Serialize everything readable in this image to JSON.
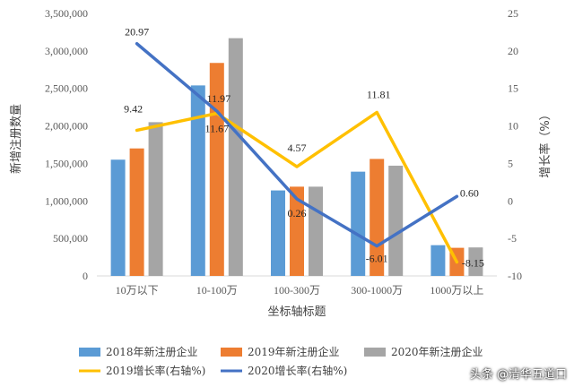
{
  "colors": {
    "bar2018": "#5B9BD5",
    "bar2019": "#ED7D31",
    "bar2020": "#A5A5A5",
    "line2019": "#FFC000",
    "line2020": "#4472C4",
    "axis": "#D9D9D9"
  },
  "watermark": "头条 @清华五道口",
  "chart_data": {
    "type": "bar",
    "categories": [
      "10万以下",
      "10-100万",
      "100-300万",
      "300-1000万",
      "1000万以上"
    ],
    "xlabel": "坐标轴标题",
    "ylabel": "新增注册数量",
    "y2label": "增长率（%）",
    "ylim": [
      0,
      3500000
    ],
    "y2lim": [
      -10,
      25
    ],
    "yticks": [
      "0",
      "500,000",
      "1,000,000",
      "1,500,000",
      "2,000,000",
      "2,500,000",
      "3,000,000",
      "3,500,000"
    ],
    "y2ticks": [
      "-10",
      "-5",
      "0",
      "5",
      "10",
      "15",
      "20",
      "25"
    ],
    "series": [
      {
        "name": "2018年新注册企业",
        "kind": "bar",
        "axis": "left",
        "values": [
          1550000,
          2540000,
          1140000,
          1390000,
          410000
        ]
      },
      {
        "name": "2019年新注册企业",
        "kind": "bar",
        "axis": "left",
        "values": [
          1700000,
          2840000,
          1190000,
          1560000,
          375000
        ]
      },
      {
        "name": "2020年新注册企业",
        "kind": "bar",
        "axis": "left",
        "values": [
          2050000,
          3170000,
          1190000,
          1470000,
          380000
        ]
      },
      {
        "name": "2019增长率(右轴%)",
        "kind": "line",
        "axis": "right",
        "values": [
          9.42,
          11.67,
          4.57,
          11.81,
          -8.15
        ],
        "labels": [
          "9.42",
          "11.67",
          "4.57",
          "11.81",
          "-8.15"
        ]
      },
      {
        "name": "2020增长率(右轴%)",
        "kind": "line",
        "axis": "right",
        "values": [
          20.97,
          11.97,
          0.26,
          -6.01,
          0.6
        ],
        "labels": [
          "20.97",
          "11.97",
          "0.26",
          "-6.01",
          "0.60"
        ]
      }
    ],
    "grid": false,
    "legend_position": "bottom"
  }
}
